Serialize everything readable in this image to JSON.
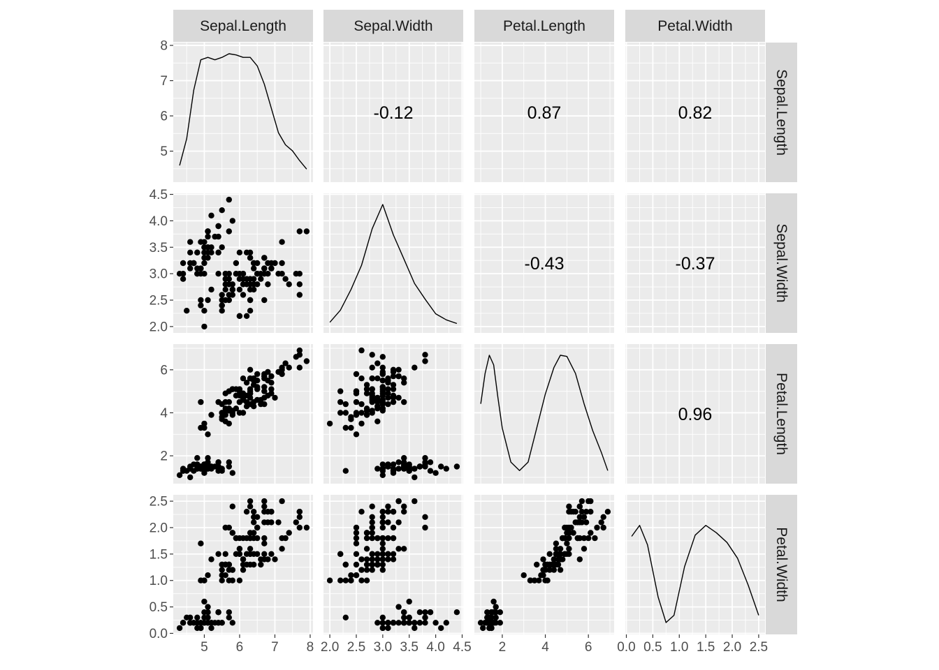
{
  "chart_data": {
    "type": "scatter",
    "description": "Scatterplot matrix (ggpairs) of the iris measurements",
    "variables": [
      "Sepal.Length",
      "Sepal.Width",
      "Petal.Length",
      "Petal.Width"
    ],
    "axis_ranges": {
      "Sepal.Length": [
        4.12,
        8.08
      ],
      "Sepal.Width": [
        1.88,
        4.52
      ],
      "Petal.Length": [
        0.705,
        7.195
      ],
      "Petal.Width": [
        -0.02,
        2.62
      ]
    },
    "ticks": {
      "Sepal.Length": [
        5,
        6,
        7,
        8
      ],
      "Sepal.Width": [
        2.0,
        2.5,
        3.0,
        3.5,
        4.0,
        4.5
      ],
      "Petal.Length": [
        2,
        4,
        6
      ],
      "Petal.Width": [
        0.0,
        0.5,
        1.0,
        1.5,
        2.0,
        2.5
      ]
    },
    "tick_labels": {
      "Sepal.Length": [
        "5",
        "6",
        "7",
        "8"
      ],
      "Sepal.Width": [
        "2.0",
        "2.5",
        "3.0",
        "3.5",
        "4.0",
        "4.5"
      ],
      "Petal.Length": [
        "2",
        "4",
        "6"
      ],
      "Petal.Width": [
        "0.0",
        "0.5",
        "1.0",
        "1.5",
        "2.0",
        "2.5"
      ]
    },
    "correlations": [
      {
        "row": "Sepal.Length",
        "col": "Sepal.Width",
        "value": "-0.12"
      },
      {
        "row": "Sepal.Length",
        "col": "Petal.Length",
        "value": "0.87"
      },
      {
        "row": "Sepal.Length",
        "col": "Petal.Width",
        "value": "0.82"
      },
      {
        "row": "Sepal.Width",
        "col": "Petal.Length",
        "value": "-0.43"
      },
      {
        "row": "Sepal.Width",
        "col": "Petal.Width",
        "value": "-0.37"
      },
      {
        "row": "Petal.Length",
        "col": "Petal.Width",
        "value": "0.96"
      }
    ],
    "densities": {
      "Sepal.Length": [
        [
          4.3,
          0.08
        ],
        [
          4.5,
          0.3
        ],
        [
          4.7,
          0.7
        ],
        [
          4.9,
          0.95
        ],
        [
          5.1,
          0.97
        ],
        [
          5.3,
          0.95
        ],
        [
          5.5,
          0.97
        ],
        [
          5.7,
          1.0
        ],
        [
          5.9,
          0.99
        ],
        [
          6.1,
          0.97
        ],
        [
          6.3,
          0.97
        ],
        [
          6.5,
          0.9
        ],
        [
          6.7,
          0.75
        ],
        [
          6.9,
          0.55
        ],
        [
          7.1,
          0.35
        ],
        [
          7.3,
          0.25
        ],
        [
          7.5,
          0.2
        ],
        [
          7.7,
          0.12
        ],
        [
          7.9,
          0.05
        ]
      ],
      "Sepal.Width": [
        [
          2.0,
          0.03
        ],
        [
          2.2,
          0.13
        ],
        [
          2.4,
          0.3
        ],
        [
          2.6,
          0.5
        ],
        [
          2.8,
          0.8
        ],
        [
          3.0,
          1.0
        ],
        [
          3.2,
          0.75
        ],
        [
          3.4,
          0.55
        ],
        [
          3.6,
          0.35
        ],
        [
          3.8,
          0.22
        ],
        [
          4.0,
          0.1
        ],
        [
          4.2,
          0.05
        ],
        [
          4.4,
          0.02
        ]
      ],
      "Petal.Length": [
        [
          1.0,
          0.6
        ],
        [
          1.2,
          0.85
        ],
        [
          1.4,
          1.0
        ],
        [
          1.6,
          0.92
        ],
        [
          1.8,
          0.65
        ],
        [
          2.0,
          0.4
        ],
        [
          2.4,
          0.12
        ],
        [
          2.8,
          0.05
        ],
        [
          3.2,
          0.12
        ],
        [
          3.6,
          0.4
        ],
        [
          4.0,
          0.68
        ],
        [
          4.4,
          0.9
        ],
        [
          4.7,
          1.0
        ],
        [
          5.0,
          0.99
        ],
        [
          5.4,
          0.85
        ],
        [
          5.8,
          0.6
        ],
        [
          6.2,
          0.38
        ],
        [
          6.6,
          0.2
        ],
        [
          6.9,
          0.05
        ]
      ],
      "Petal.Width": [
        [
          0.1,
          0.75
        ],
        [
          0.25,
          0.84
        ],
        [
          0.4,
          0.68
        ],
        [
          0.6,
          0.25
        ],
        [
          0.75,
          0.04
        ],
        [
          0.9,
          0.1
        ],
        [
          1.1,
          0.5
        ],
        [
          1.3,
          0.76
        ],
        [
          1.5,
          0.84
        ],
        [
          1.7,
          0.78
        ],
        [
          1.9,
          0.7
        ],
        [
          2.1,
          0.57
        ],
        [
          2.3,
          0.35
        ],
        [
          2.5,
          0.1
        ]
      ]
    },
    "observations": [
      [
        5.1,
        3.5,
        1.4,
        0.2
      ],
      [
        4.9,
        3.0,
        1.4,
        0.2
      ],
      [
        4.7,
        3.2,
        1.3,
        0.2
      ],
      [
        4.6,
        3.1,
        1.5,
        0.2
      ],
      [
        5.0,
        3.6,
        1.4,
        0.2
      ],
      [
        5.4,
        3.9,
        1.7,
        0.4
      ],
      [
        4.6,
        3.4,
        1.4,
        0.3
      ],
      [
        5.0,
        3.4,
        1.5,
        0.2
      ],
      [
        4.4,
        2.9,
        1.4,
        0.2
      ],
      [
        4.9,
        3.1,
        1.5,
        0.1
      ],
      [
        5.4,
        3.7,
        1.5,
        0.2
      ],
      [
        4.8,
        3.4,
        1.6,
        0.2
      ],
      [
        4.8,
        3.0,
        1.4,
        0.1
      ],
      [
        4.3,
        3.0,
        1.1,
        0.1
      ],
      [
        5.8,
        4.0,
        1.2,
        0.2
      ],
      [
        5.7,
        4.4,
        1.5,
        0.4
      ],
      [
        5.4,
        3.9,
        1.3,
        0.4
      ],
      [
        5.1,
        3.5,
        1.4,
        0.3
      ],
      [
        5.7,
        3.8,
        1.7,
        0.3
      ],
      [
        5.1,
        3.8,
        1.5,
        0.3
      ],
      [
        5.4,
        3.4,
        1.7,
        0.2
      ],
      [
        5.1,
        3.7,
        1.5,
        0.4
      ],
      [
        4.6,
        3.6,
        1.0,
        0.2
      ],
      [
        5.1,
        3.3,
        1.7,
        0.5
      ],
      [
        4.8,
        3.4,
        1.9,
        0.2
      ],
      [
        5.0,
        3.0,
        1.6,
        0.2
      ],
      [
        5.0,
        3.4,
        1.6,
        0.4
      ],
      [
        5.2,
        3.5,
        1.5,
        0.2
      ],
      [
        5.2,
        3.4,
        1.4,
        0.2
      ],
      [
        4.7,
        3.2,
        1.6,
        0.2
      ],
      [
        4.8,
        3.1,
        1.6,
        0.2
      ],
      [
        5.4,
        3.4,
        1.5,
        0.4
      ],
      [
        5.2,
        4.1,
        1.5,
        0.1
      ],
      [
        5.5,
        4.2,
        1.4,
        0.2
      ],
      [
        4.9,
        3.1,
        1.5,
        0.2
      ],
      [
        5.0,
        3.2,
        1.2,
        0.2
      ],
      [
        5.5,
        3.5,
        1.3,
        0.2
      ],
      [
        4.9,
        3.6,
        1.4,
        0.1
      ],
      [
        4.4,
        3.0,
        1.3,
        0.2
      ],
      [
        5.1,
        3.4,
        1.5,
        0.2
      ],
      [
        5.0,
        3.5,
        1.3,
        0.3
      ],
      [
        4.5,
        2.3,
        1.3,
        0.3
      ],
      [
        4.4,
        3.2,
        1.3,
        0.2
      ],
      [
        5.0,
        3.5,
        1.6,
        0.6
      ],
      [
        5.1,
        3.8,
        1.9,
        0.4
      ],
      [
        4.8,
        3.0,
        1.4,
        0.3
      ],
      [
        5.1,
        3.8,
        1.6,
        0.2
      ],
      [
        4.6,
        3.2,
        1.4,
        0.2
      ],
      [
        5.3,
        3.7,
        1.5,
        0.2
      ],
      [
        5.0,
        3.3,
        1.4,
        0.2
      ],
      [
        7.0,
        3.2,
        4.7,
        1.4
      ],
      [
        6.4,
        3.2,
        4.5,
        1.5
      ],
      [
        6.9,
        3.1,
        4.9,
        1.5
      ],
      [
        5.5,
        2.3,
        4.0,
        1.3
      ],
      [
        6.5,
        2.8,
        4.6,
        1.5
      ],
      [
        5.7,
        2.8,
        4.5,
        1.3
      ],
      [
        6.3,
        3.3,
        4.7,
        1.6
      ],
      [
        4.9,
        2.4,
        3.3,
        1.0
      ],
      [
        6.6,
        2.9,
        4.6,
        1.3
      ],
      [
        5.2,
        2.7,
        3.9,
        1.4
      ],
      [
        5.0,
        2.0,
        3.5,
        1.0
      ],
      [
        5.9,
        3.0,
        4.2,
        1.5
      ],
      [
        6.0,
        2.2,
        4.0,
        1.0
      ],
      [
        6.1,
        2.9,
        4.7,
        1.4
      ],
      [
        5.6,
        2.9,
        3.6,
        1.3
      ],
      [
        6.7,
        3.1,
        4.4,
        1.4
      ],
      [
        5.6,
        3.0,
        4.5,
        1.5
      ],
      [
        5.8,
        2.7,
        4.1,
        1.0
      ],
      [
        6.2,
        2.2,
        4.5,
        1.5
      ],
      [
        5.6,
        2.5,
        3.9,
        1.1
      ],
      [
        5.9,
        3.2,
        4.8,
        1.8
      ],
      [
        6.1,
        2.8,
        4.0,
        1.3
      ],
      [
        6.3,
        2.5,
        4.9,
        1.5
      ],
      [
        6.1,
        2.8,
        4.7,
        1.2
      ],
      [
        6.4,
        2.9,
        4.3,
        1.3
      ],
      [
        6.6,
        3.0,
        4.4,
        1.4
      ],
      [
        6.8,
        2.8,
        4.8,
        1.4
      ],
      [
        6.7,
        3.0,
        5.0,
        1.7
      ],
      [
        6.0,
        2.9,
        4.5,
        1.5
      ],
      [
        5.7,
        2.6,
        3.5,
        1.0
      ],
      [
        5.5,
        2.4,
        3.8,
        1.1
      ],
      [
        5.5,
        2.4,
        3.7,
        1.0
      ],
      [
        5.8,
        2.7,
        3.9,
        1.2
      ],
      [
        6.0,
        2.7,
        5.1,
        1.6
      ],
      [
        5.4,
        3.0,
        4.5,
        1.5
      ],
      [
        6.0,
        3.4,
        4.5,
        1.6
      ],
      [
        6.7,
        3.1,
        4.7,
        1.5
      ],
      [
        6.3,
        2.3,
        4.4,
        1.3
      ],
      [
        5.6,
        3.0,
        4.1,
        1.3
      ],
      [
        5.5,
        2.5,
        4.0,
        1.3
      ],
      [
        5.5,
        2.6,
        4.4,
        1.2
      ],
      [
        6.1,
        3.0,
        4.6,
        1.4
      ],
      [
        5.8,
        2.6,
        4.0,
        1.2
      ],
      [
        5.0,
        2.3,
        3.3,
        1.0
      ],
      [
        5.6,
        2.7,
        4.2,
        1.3
      ],
      [
        5.7,
        3.0,
        4.2,
        1.2
      ],
      [
        5.7,
        2.9,
        4.2,
        1.3
      ],
      [
        6.2,
        2.9,
        4.3,
        1.3
      ],
      [
        5.1,
        2.5,
        3.0,
        1.1
      ],
      [
        5.7,
        2.8,
        4.1,
        1.3
      ],
      [
        6.3,
        3.3,
        6.0,
        2.5
      ],
      [
        5.8,
        2.7,
        5.1,
        1.9
      ],
      [
        7.1,
        3.0,
        5.9,
        2.1
      ],
      [
        6.3,
        2.9,
        5.6,
        1.8
      ],
      [
        6.5,
        3.0,
        5.8,
        2.2
      ],
      [
        7.6,
        3.0,
        6.6,
        2.1
      ],
      [
        4.9,
        2.5,
        4.5,
        1.7
      ],
      [
        7.3,
        2.9,
        6.3,
        1.8
      ],
      [
        6.7,
        2.5,
        5.8,
        1.8
      ],
      [
        7.2,
        3.6,
        6.1,
        2.5
      ],
      [
        6.5,
        3.2,
        5.1,
        2.0
      ],
      [
        6.4,
        2.7,
        5.3,
        1.9
      ],
      [
        6.8,
        3.0,
        5.5,
        2.1
      ],
      [
        5.7,
        2.5,
        5.0,
        2.0
      ],
      [
        5.8,
        2.8,
        5.1,
        2.4
      ],
      [
        6.4,
        3.2,
        5.3,
        2.3
      ],
      [
        6.5,
        3.0,
        5.5,
        1.8
      ],
      [
        7.7,
        3.8,
        6.7,
        2.2
      ],
      [
        7.7,
        2.6,
        6.9,
        2.3
      ],
      [
        6.0,
        2.2,
        5.0,
        1.5
      ],
      [
        6.9,
        3.2,
        5.7,
        2.3
      ],
      [
        5.6,
        2.8,
        4.9,
        2.0
      ],
      [
        7.7,
        2.8,
        6.7,
        2.0
      ],
      [
        6.3,
        2.7,
        4.9,
        1.8
      ],
      [
        6.7,
        3.3,
        5.7,
        2.1
      ],
      [
        7.2,
        3.2,
        6.0,
        1.8
      ],
      [
        6.2,
        2.8,
        4.8,
        1.8
      ],
      [
        6.1,
        3.0,
        4.9,
        1.8
      ],
      [
        6.4,
        2.8,
        5.6,
        2.1
      ],
      [
        7.2,
        3.0,
        5.8,
        1.6
      ],
      [
        7.4,
        2.8,
        6.1,
        1.9
      ],
      [
        7.9,
        3.8,
        6.4,
        2.0
      ],
      [
        6.4,
        2.8,
        5.6,
        2.2
      ],
      [
        6.3,
        2.8,
        5.1,
        1.5
      ],
      [
        6.1,
        2.6,
        5.6,
        1.4
      ],
      [
        7.7,
        3.0,
        6.1,
        2.3
      ],
      [
        6.3,
        3.4,
        5.6,
        2.4
      ],
      [
        6.4,
        3.1,
        5.5,
        1.8
      ],
      [
        6.0,
        3.0,
        4.8,
        1.8
      ],
      [
        6.9,
        3.1,
        5.4,
        2.1
      ],
      [
        6.7,
        3.1,
        5.6,
        2.4
      ],
      [
        6.9,
        3.1,
        5.1,
        2.3
      ],
      [
        5.8,
        2.7,
        5.1,
        1.9
      ],
      [
        6.8,
        3.2,
        5.9,
        2.3
      ],
      [
        6.7,
        3.3,
        5.7,
        2.5
      ],
      [
        6.7,
        3.0,
        5.2,
        2.3
      ],
      [
        6.3,
        2.5,
        5.0,
        1.9
      ],
      [
        6.5,
        3.0,
        5.2,
        2.0
      ],
      [
        6.2,
        3.4,
        5.4,
        2.3
      ],
      [
        5.9,
        3.0,
        5.1,
        1.8
      ]
    ],
    "title": "",
    "xlabel": "",
    "ylabel": "",
    "grid": true,
    "strip_position": "top and right"
  }
}
